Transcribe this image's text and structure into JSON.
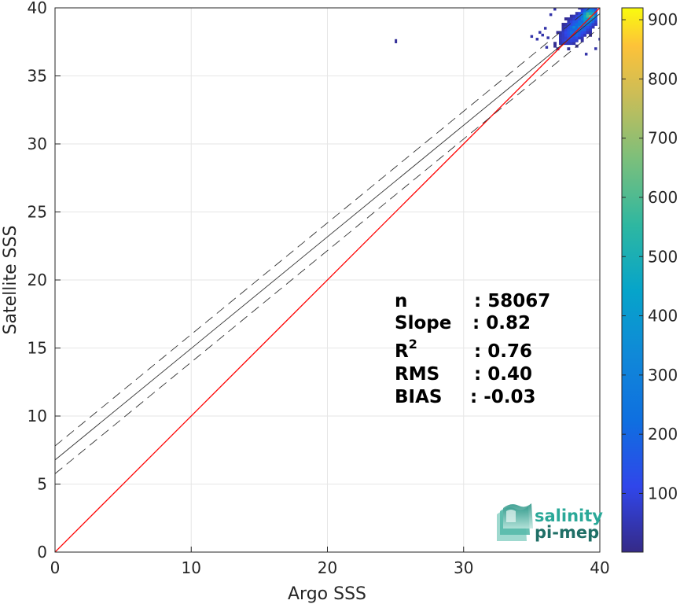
{
  "chart_data": {
    "type": "heatmap",
    "title": "",
    "xlabel": "Argo SSS",
    "ylabel": "Satellite SSS",
    "xlim": [
      0,
      40
    ],
    "ylim": [
      0,
      40
    ],
    "xticks": [
      0,
      10,
      20,
      30,
      40
    ],
    "yticks": [
      0,
      5,
      10,
      15,
      20,
      25,
      30,
      35,
      40
    ],
    "grid": true,
    "colormap": "parula",
    "colorbar": {
      "range": [
        1,
        920
      ],
      "ticks": [
        100,
        200,
        300,
        400,
        500,
        600,
        700,
        800,
        900
      ]
    },
    "density_cluster": {
      "x_range": [
        36.2,
        39.8
      ],
      "y_range": [
        35.9,
        40.0
      ],
      "peak": [
        39.2,
        39.4
      ],
      "max_count": 920
    },
    "isolated_points": [
      {
        "x": 25.0,
        "y": 37.4
      }
    ],
    "lines": [
      {
        "name": "identity",
        "slope": 1.0,
        "intercept": 0.0,
        "color": "#ff0000",
        "style": "solid"
      },
      {
        "name": "fit",
        "slope": 0.82,
        "intercept": 6.77,
        "color": "#333333",
        "style": "solid"
      },
      {
        "name": "fit-upper",
        "slope": 0.82,
        "intercept": 7.8,
        "color": "#333333",
        "style": "dashed"
      },
      {
        "name": "fit-lower",
        "slope": 0.82,
        "intercept": 5.76,
        "color": "#333333",
        "style": "dashed"
      }
    ],
    "stats": [
      {
        "label": "n",
        "sup": "",
        "value": ": 58067"
      },
      {
        "label": "Slope",
        "sup": "",
        "value": ": 0.82"
      },
      {
        "label": "R",
        "sup": "2",
        "value": ": 0.76"
      },
      {
        "label": "RMS",
        "sup": "",
        "value": ": 0.40"
      },
      {
        "label": "BIAS",
        "sup": "",
        "value": ": -0.03"
      }
    ]
  },
  "logo": {
    "line1": "salinity",
    "line2": "pi-mep"
  },
  "colors": {
    "logo_teal": "#2aa898",
    "logo_dark": "#1f6f66",
    "identity": "#ff0000"
  }
}
